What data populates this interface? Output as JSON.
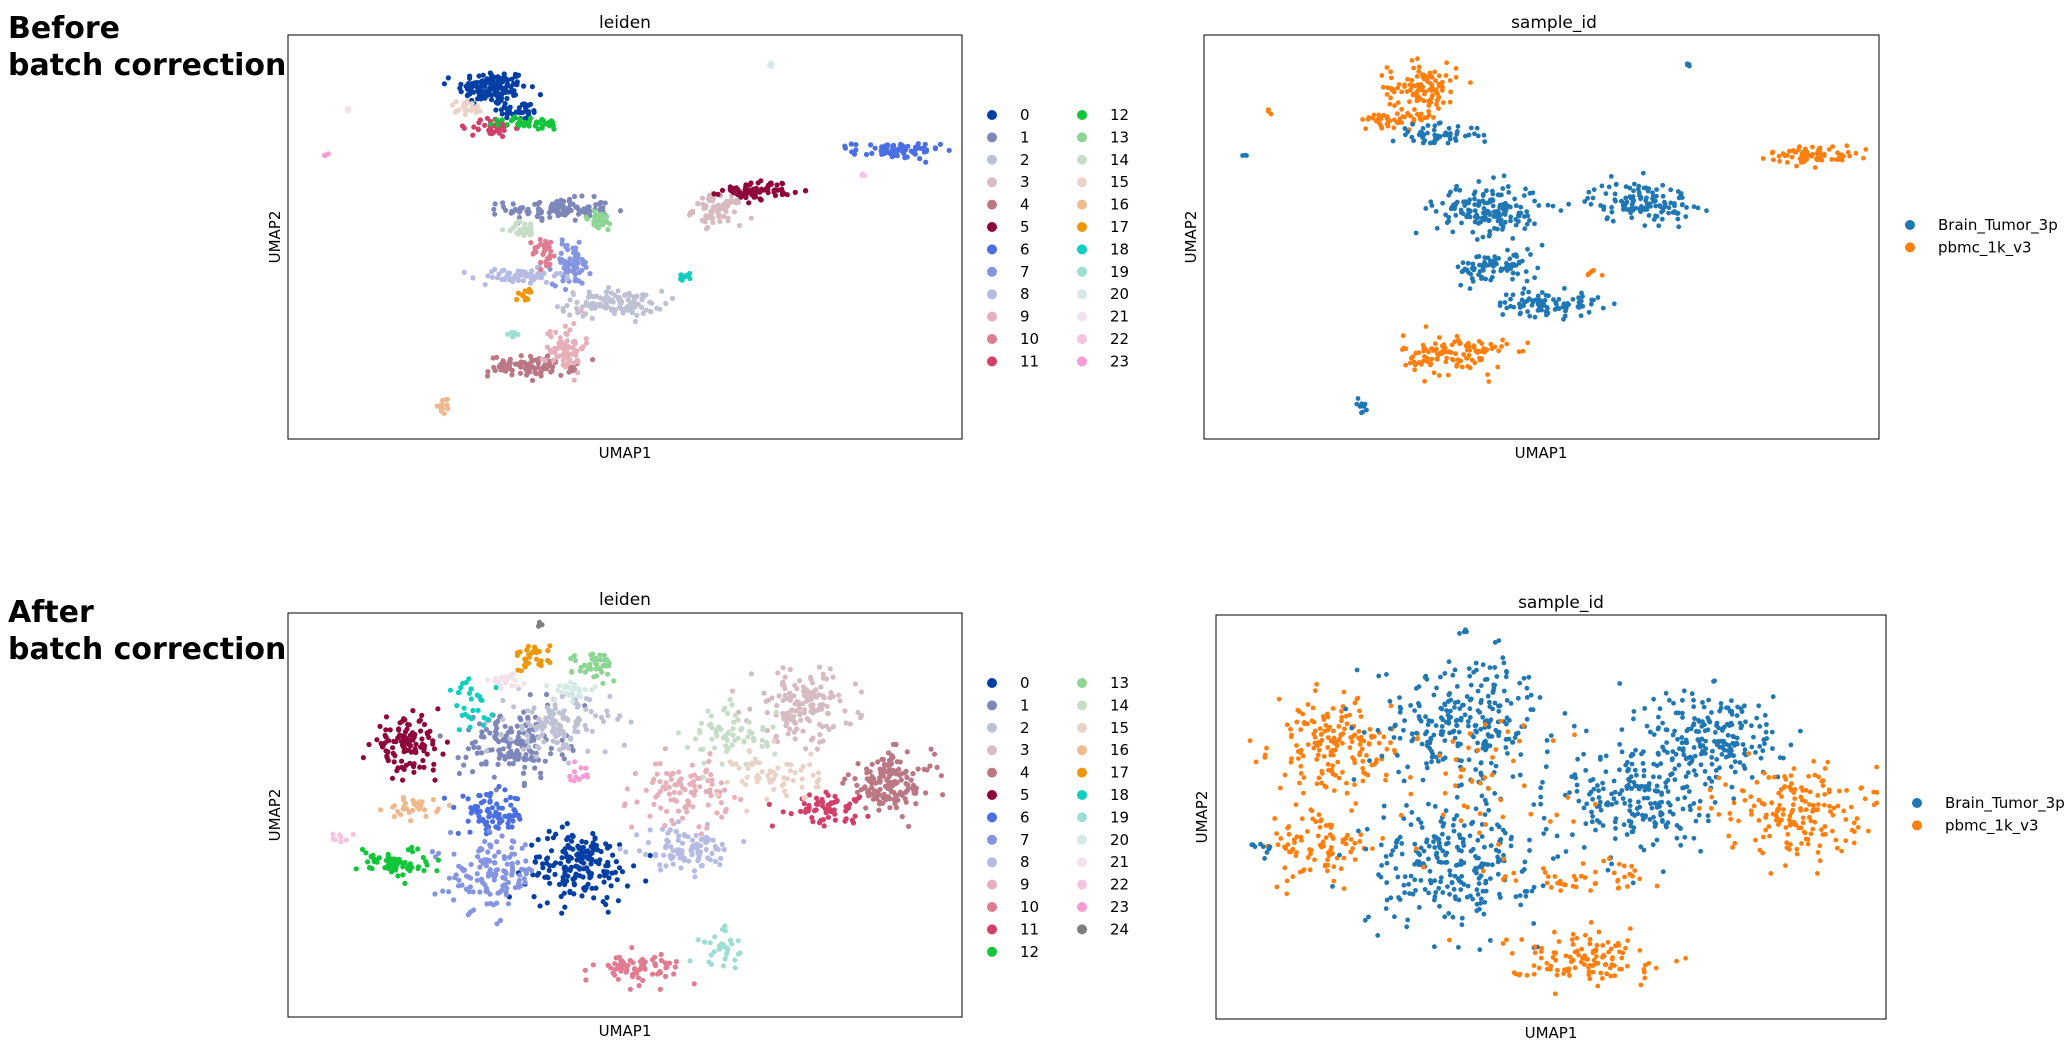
{
  "rows": {
    "before_label": "Before\nbatch correction",
    "after_label": "After\nbatch correction"
  },
  "chart_data": [
    {
      "type": "scatter",
      "panel": "before-leiden",
      "title": "leiden",
      "xlabel": "UMAP1",
      "ylabel": "UMAP2",
      "xlim": [
        0,
        100
      ],
      "ylim": [
        0,
        100
      ],
      "grid": false,
      "legend_position": "right, two columns",
      "legend": [
        "0",
        "1",
        "2",
        "3",
        "4",
        "5",
        "6",
        "7",
        "8",
        "9",
        "10",
        "11",
        "12",
        "13",
        "14",
        "15",
        "16",
        "17",
        "18",
        "19",
        "20",
        "21",
        "22",
        "23"
      ],
      "colors": [
        "#023fa5",
        "#7d87b9",
        "#bec1d4",
        "#d6bcc0",
        "#bb7784",
        "#8e063b",
        "#4a6fe3",
        "#8595e1",
        "#b5bbe3",
        "#e6afb9",
        "#e07b91",
        "#d33f6a",
        "#11c638",
        "#8dd593",
        "#c6dec7",
        "#ead3c6",
        "#f0b98d",
        "#ef9708",
        "#0fcfc0",
        "#9cded6",
        "#d5eae7",
        "#f3e1eb",
        "#f6c4e1",
        "#f79cd4"
      ],
      "clusters": [
        {
          "cluster": 0,
          "cx": 30,
          "cy": 88,
          "rx": 4,
          "ry": 3.5,
          "n": 140
        },
        {
          "cluster": 0,
          "cx": 34,
          "cy": 82,
          "rx": 2.5,
          "ry": 2,
          "n": 40
        },
        {
          "cluster": 1,
          "cx": 40,
          "cy": 57,
          "rx": 6,
          "ry": 2.2,
          "n": 110
        },
        {
          "cluster": 2,
          "cx": 48,
          "cy": 33,
          "rx": 6,
          "ry": 2.5,
          "n": 110
        },
        {
          "cluster": 3,
          "cx": 64,
          "cy": 57,
          "rx": 2.8,
          "ry": 3,
          "n": 80
        },
        {
          "cluster": 4,
          "cx": 36,
          "cy": 17,
          "rx": 5,
          "ry": 2,
          "n": 90
        },
        {
          "cluster": 5,
          "cx": 70,
          "cy": 62,
          "rx": 4,
          "ry": 1.8,
          "n": 70
        },
        {
          "cluster": 6,
          "cx": 91,
          "cy": 72,
          "rx": 5,
          "ry": 1.6,
          "n": 70
        },
        {
          "cluster": 7,
          "cx": 42,
          "cy": 43,
          "rx": 2.2,
          "ry": 4,
          "n": 70
        },
        {
          "cluster": 8,
          "cx": 34,
          "cy": 40,
          "rx": 5,
          "ry": 1.5,
          "n": 60
        },
        {
          "cluster": 9,
          "cx": 41,
          "cy": 22,
          "rx": 2.2,
          "ry": 5,
          "n": 70
        },
        {
          "cluster": 10,
          "cx": 38,
          "cy": 46,
          "rx": 1.5,
          "ry": 3,
          "n": 30
        },
        {
          "cluster": 11,
          "cx": 30,
          "cy": 78,
          "rx": 2.5,
          "ry": 2,
          "n": 40
        },
        {
          "cluster": 12,
          "cx": 36,
          "cy": 79,
          "rx": 3.5,
          "ry": 1.2,
          "n": 40
        },
        {
          "cluster": 13,
          "cx": 46,
          "cy": 54,
          "rx": 2,
          "ry": 2,
          "n": 30
        },
        {
          "cluster": 14,
          "cx": 35,
          "cy": 52,
          "rx": 2.2,
          "ry": 1.5,
          "n": 25
        },
        {
          "cluster": 15,
          "cx": 26,
          "cy": 83,
          "rx": 2,
          "ry": 1.5,
          "n": 25
        },
        {
          "cluster": 16,
          "cx": 23,
          "cy": 7,
          "rx": 0.8,
          "ry": 1.5,
          "n": 12
        },
        {
          "cluster": 17,
          "cx": 35,
          "cy": 35,
          "rx": 1.2,
          "ry": 1.5,
          "n": 12
        },
        {
          "cluster": 18,
          "cx": 59,
          "cy": 40,
          "rx": 1,
          "ry": 0.8,
          "n": 8
        },
        {
          "cluster": 19,
          "cx": 33,
          "cy": 25,
          "rx": 0.8,
          "ry": 0.8,
          "n": 6
        },
        {
          "cluster": 20,
          "cx": 72,
          "cy": 94,
          "rx": 0.5,
          "ry": 0.6,
          "n": 4
        },
        {
          "cluster": 21,
          "cx": 8,
          "cy": 83,
          "rx": 0.4,
          "ry": 0.8,
          "n": 4
        },
        {
          "cluster": 22,
          "cx": 86,
          "cy": 66,
          "rx": 0.6,
          "ry": 0.5,
          "n": 3
        },
        {
          "cluster": 23,
          "cx": 5,
          "cy": 71,
          "rx": 0.4,
          "ry": 0.5,
          "n": 3
        }
      ]
    },
    {
      "type": "scatter",
      "panel": "before-sample",
      "title": "sample_id",
      "xlabel": "UMAP1",
      "ylabel": "UMAP2",
      "xlim": [
        0,
        100
      ],
      "ylim": [
        0,
        100
      ],
      "grid": false,
      "legend_position": "right",
      "legend": [
        "Brain_Tumor_3p",
        "pbmc_1k_v3"
      ],
      "colors": [
        "#1f77b4",
        "#ff7f0e"
      ],
      "clusters": [
        {
          "group": 1,
          "cx": 32,
          "cy": 88,
          "rx": 4,
          "ry": 5,
          "n": 120
        },
        {
          "group": 1,
          "cx": 28,
          "cy": 80,
          "rx": 4,
          "ry": 1.5,
          "n": 40
        },
        {
          "group": 0,
          "cx": 34,
          "cy": 76,
          "rx": 5,
          "ry": 2,
          "n": 60
        },
        {
          "group": 0,
          "cx": 42,
          "cy": 57,
          "rx": 6,
          "ry": 5,
          "n": 170
        },
        {
          "group": 0,
          "cx": 43,
          "cy": 42,
          "rx": 5,
          "ry": 3,
          "n": 80
        },
        {
          "group": 0,
          "cx": 51,
          "cy": 33,
          "rx": 6,
          "ry": 2.5,
          "n": 90
        },
        {
          "group": 0,
          "cx": 65,
          "cy": 59,
          "rx": 6,
          "ry": 4,
          "n": 130
        },
        {
          "group": 1,
          "cx": 37,
          "cy": 20,
          "rx": 6,
          "ry": 4,
          "n": 120
        },
        {
          "group": 1,
          "cx": 91,
          "cy": 71,
          "rx": 5,
          "ry": 1.8,
          "n": 70
        },
        {
          "group": 1,
          "cx": 58,
          "cy": 41,
          "rx": 1,
          "ry": 0.7,
          "n": 6
        },
        {
          "group": 0,
          "cx": 23,
          "cy": 7,
          "rx": 0.8,
          "ry": 1.5,
          "n": 12
        },
        {
          "group": 0,
          "cx": 72,
          "cy": 94,
          "rx": 0.5,
          "ry": 0.6,
          "n": 4
        },
        {
          "group": 1,
          "cx": 9,
          "cy": 82,
          "rx": 0.4,
          "ry": 0.6,
          "n": 3
        },
        {
          "group": 0,
          "cx": 5,
          "cy": 71,
          "rx": 0.4,
          "ry": 0.5,
          "n": 3
        }
      ]
    },
    {
      "type": "scatter",
      "panel": "after-leiden",
      "title": "leiden",
      "xlabel": "UMAP1",
      "ylabel": "UMAP2",
      "xlim": [
        0,
        100
      ],
      "ylim": [
        0,
        100
      ],
      "grid": false,
      "legend_position": "right, two columns",
      "legend": [
        "0",
        "1",
        "2",
        "3",
        "4",
        "5",
        "6",
        "7",
        "8",
        "9",
        "10",
        "11",
        "12",
        "13",
        "14",
        "15",
        "16",
        "17",
        "18",
        "19",
        "20",
        "21",
        "22",
        "23",
        "24"
      ],
      "colors": [
        "#023fa5",
        "#7d87b9",
        "#bec1d4",
        "#d6bcc0",
        "#bb7784",
        "#8e063b",
        "#4a6fe3",
        "#8595e1",
        "#b5bbe3",
        "#e6afb9",
        "#e07b91",
        "#d33f6a",
        "#11c638",
        "#8dd593",
        "#c6dec7",
        "#ead3c6",
        "#f0b98d",
        "#ef9708",
        "#0fcfc0",
        "#9cded6",
        "#d5eae7",
        "#f3e1eb",
        "#f6c4e1",
        "#f79cd4",
        "#7f7f7f"
      ],
      "clusters": [
        {
          "cluster": 0,
          "cx": 43,
          "cy": 37,
          "rx": 6,
          "ry": 7,
          "n": 180
        },
        {
          "cluster": 1,
          "cx": 33,
          "cy": 68,
          "rx": 6,
          "ry": 7,
          "n": 150
        },
        {
          "cluster": 2,
          "cx": 40,
          "cy": 73,
          "rx": 6,
          "ry": 6,
          "n": 120
        },
        {
          "cluster": 3,
          "cx": 77,
          "cy": 78,
          "rx": 6,
          "ry": 7,
          "n": 150
        },
        {
          "cluster": 4,
          "cx": 90,
          "cy": 58,
          "rx": 5,
          "ry": 6,
          "n": 140
        },
        {
          "cluster": 5,
          "cx": 17,
          "cy": 68,
          "rx": 4,
          "ry": 5,
          "n": 110
        },
        {
          "cluster": 6,
          "cx": 30,
          "cy": 50,
          "rx": 4,
          "ry": 4,
          "n": 80
        },
        {
          "cluster": 7,
          "cx": 30,
          "cy": 35,
          "rx": 5,
          "ry": 7,
          "n": 130
        },
        {
          "cluster": 8,
          "cx": 59,
          "cy": 41,
          "rx": 6,
          "ry": 4,
          "n": 90
        },
        {
          "cluster": 9,
          "cx": 59,
          "cy": 56,
          "rx": 5,
          "ry": 6,
          "n": 100
        },
        {
          "cluster": 10,
          "cx": 52,
          "cy": 11,
          "rx": 5,
          "ry": 3,
          "n": 70
        },
        {
          "cluster": 11,
          "cx": 80,
          "cy": 52,
          "rx": 5,
          "ry": 3,
          "n": 60
        },
        {
          "cluster": 12,
          "cx": 15,
          "cy": 38,
          "rx": 4,
          "ry": 3,
          "n": 60
        },
        {
          "cluster": 13,
          "cx": 46,
          "cy": 88,
          "rx": 3,
          "ry": 3,
          "n": 40
        },
        {
          "cluster": 14,
          "cx": 66,
          "cy": 70,
          "rx": 5,
          "ry": 6,
          "n": 70
        },
        {
          "cluster": 15,
          "cx": 73,
          "cy": 60,
          "rx": 5,
          "ry": 5,
          "n": 60
        },
        {
          "cluster": 16,
          "cx": 18,
          "cy": 52,
          "rx": 3,
          "ry": 2,
          "n": 35
        },
        {
          "cluster": 17,
          "cx": 36,
          "cy": 90,
          "rx": 2,
          "ry": 3,
          "n": 30
        },
        {
          "cluster": 18,
          "cx": 27,
          "cy": 78,
          "rx": 3,
          "ry": 5,
          "n": 30
        },
        {
          "cluster": 19,
          "cx": 65,
          "cy": 16,
          "rx": 3,
          "ry": 4,
          "n": 30
        },
        {
          "cluster": 20,
          "cx": 42,
          "cy": 82,
          "rx": 3,
          "ry": 2,
          "n": 25
        },
        {
          "cluster": 21,
          "cx": 32,
          "cy": 84,
          "rx": 2,
          "ry": 1.5,
          "n": 20
        },
        {
          "cluster": 22,
          "cx": 7,
          "cy": 44,
          "rx": 1.5,
          "ry": 1.2,
          "n": 8
        },
        {
          "cluster": 23,
          "cx": 43,
          "cy": 60,
          "rx": 1.5,
          "ry": 2,
          "n": 12
        },
        {
          "cluster": 24,
          "cx": 37,
          "cy": 98,
          "rx": 0.5,
          "ry": 0.8,
          "n": 3
        }
      ]
    },
    {
      "type": "scatter",
      "panel": "after-sample",
      "title": "sample_id",
      "xlabel": "UMAP1",
      "ylabel": "UMAP2",
      "xlim": [
        0,
        100
      ],
      "ylim": [
        0,
        100
      ],
      "grid": false,
      "legend_position": "right",
      "legend": [
        "Brain_Tumor_3p",
        "pbmc_1k_v3"
      ],
      "colors": [
        "#1f77b4",
        "#ff7f0e"
      ],
      "clusters": [
        {
          "group": 1,
          "cx": 17,
          "cy": 68,
          "rx": 7,
          "ry": 9,
          "n": 180
        },
        {
          "group": 1,
          "cx": 15,
          "cy": 42,
          "rx": 6,
          "ry": 8,
          "n": 90
        },
        {
          "group": 0,
          "cx": 37,
          "cy": 75,
          "rx": 10,
          "ry": 12,
          "n": 260
        },
        {
          "group": 0,
          "cx": 35,
          "cy": 38,
          "rx": 10,
          "ry": 12,
          "n": 260
        },
        {
          "group": 0,
          "cx": 63,
          "cy": 55,
          "rx": 8,
          "ry": 12,
          "n": 220
        },
        {
          "group": 0,
          "cx": 75,
          "cy": 70,
          "rx": 8,
          "ry": 10,
          "n": 200
        },
        {
          "group": 1,
          "cx": 87,
          "cy": 52,
          "rx": 8,
          "ry": 9,
          "n": 180
        },
        {
          "group": 1,
          "cx": 55,
          "cy": 14,
          "rx": 9,
          "ry": 5,
          "n": 120
        },
        {
          "group": 1,
          "cx": 55,
          "cy": 35,
          "rx": 8,
          "ry": 3,
          "n": 40
        },
        {
          "group": 1,
          "cx": 40,
          "cy": 55,
          "rx": 12,
          "ry": 20,
          "n": 60
        },
        {
          "group": 0,
          "cx": 6,
          "cy": 42,
          "rx": 2,
          "ry": 2,
          "n": 10
        },
        {
          "group": 0,
          "cx": 37,
          "cy": 97,
          "rx": 0.6,
          "ry": 0.8,
          "n": 3
        }
      ]
    }
  ]
}
